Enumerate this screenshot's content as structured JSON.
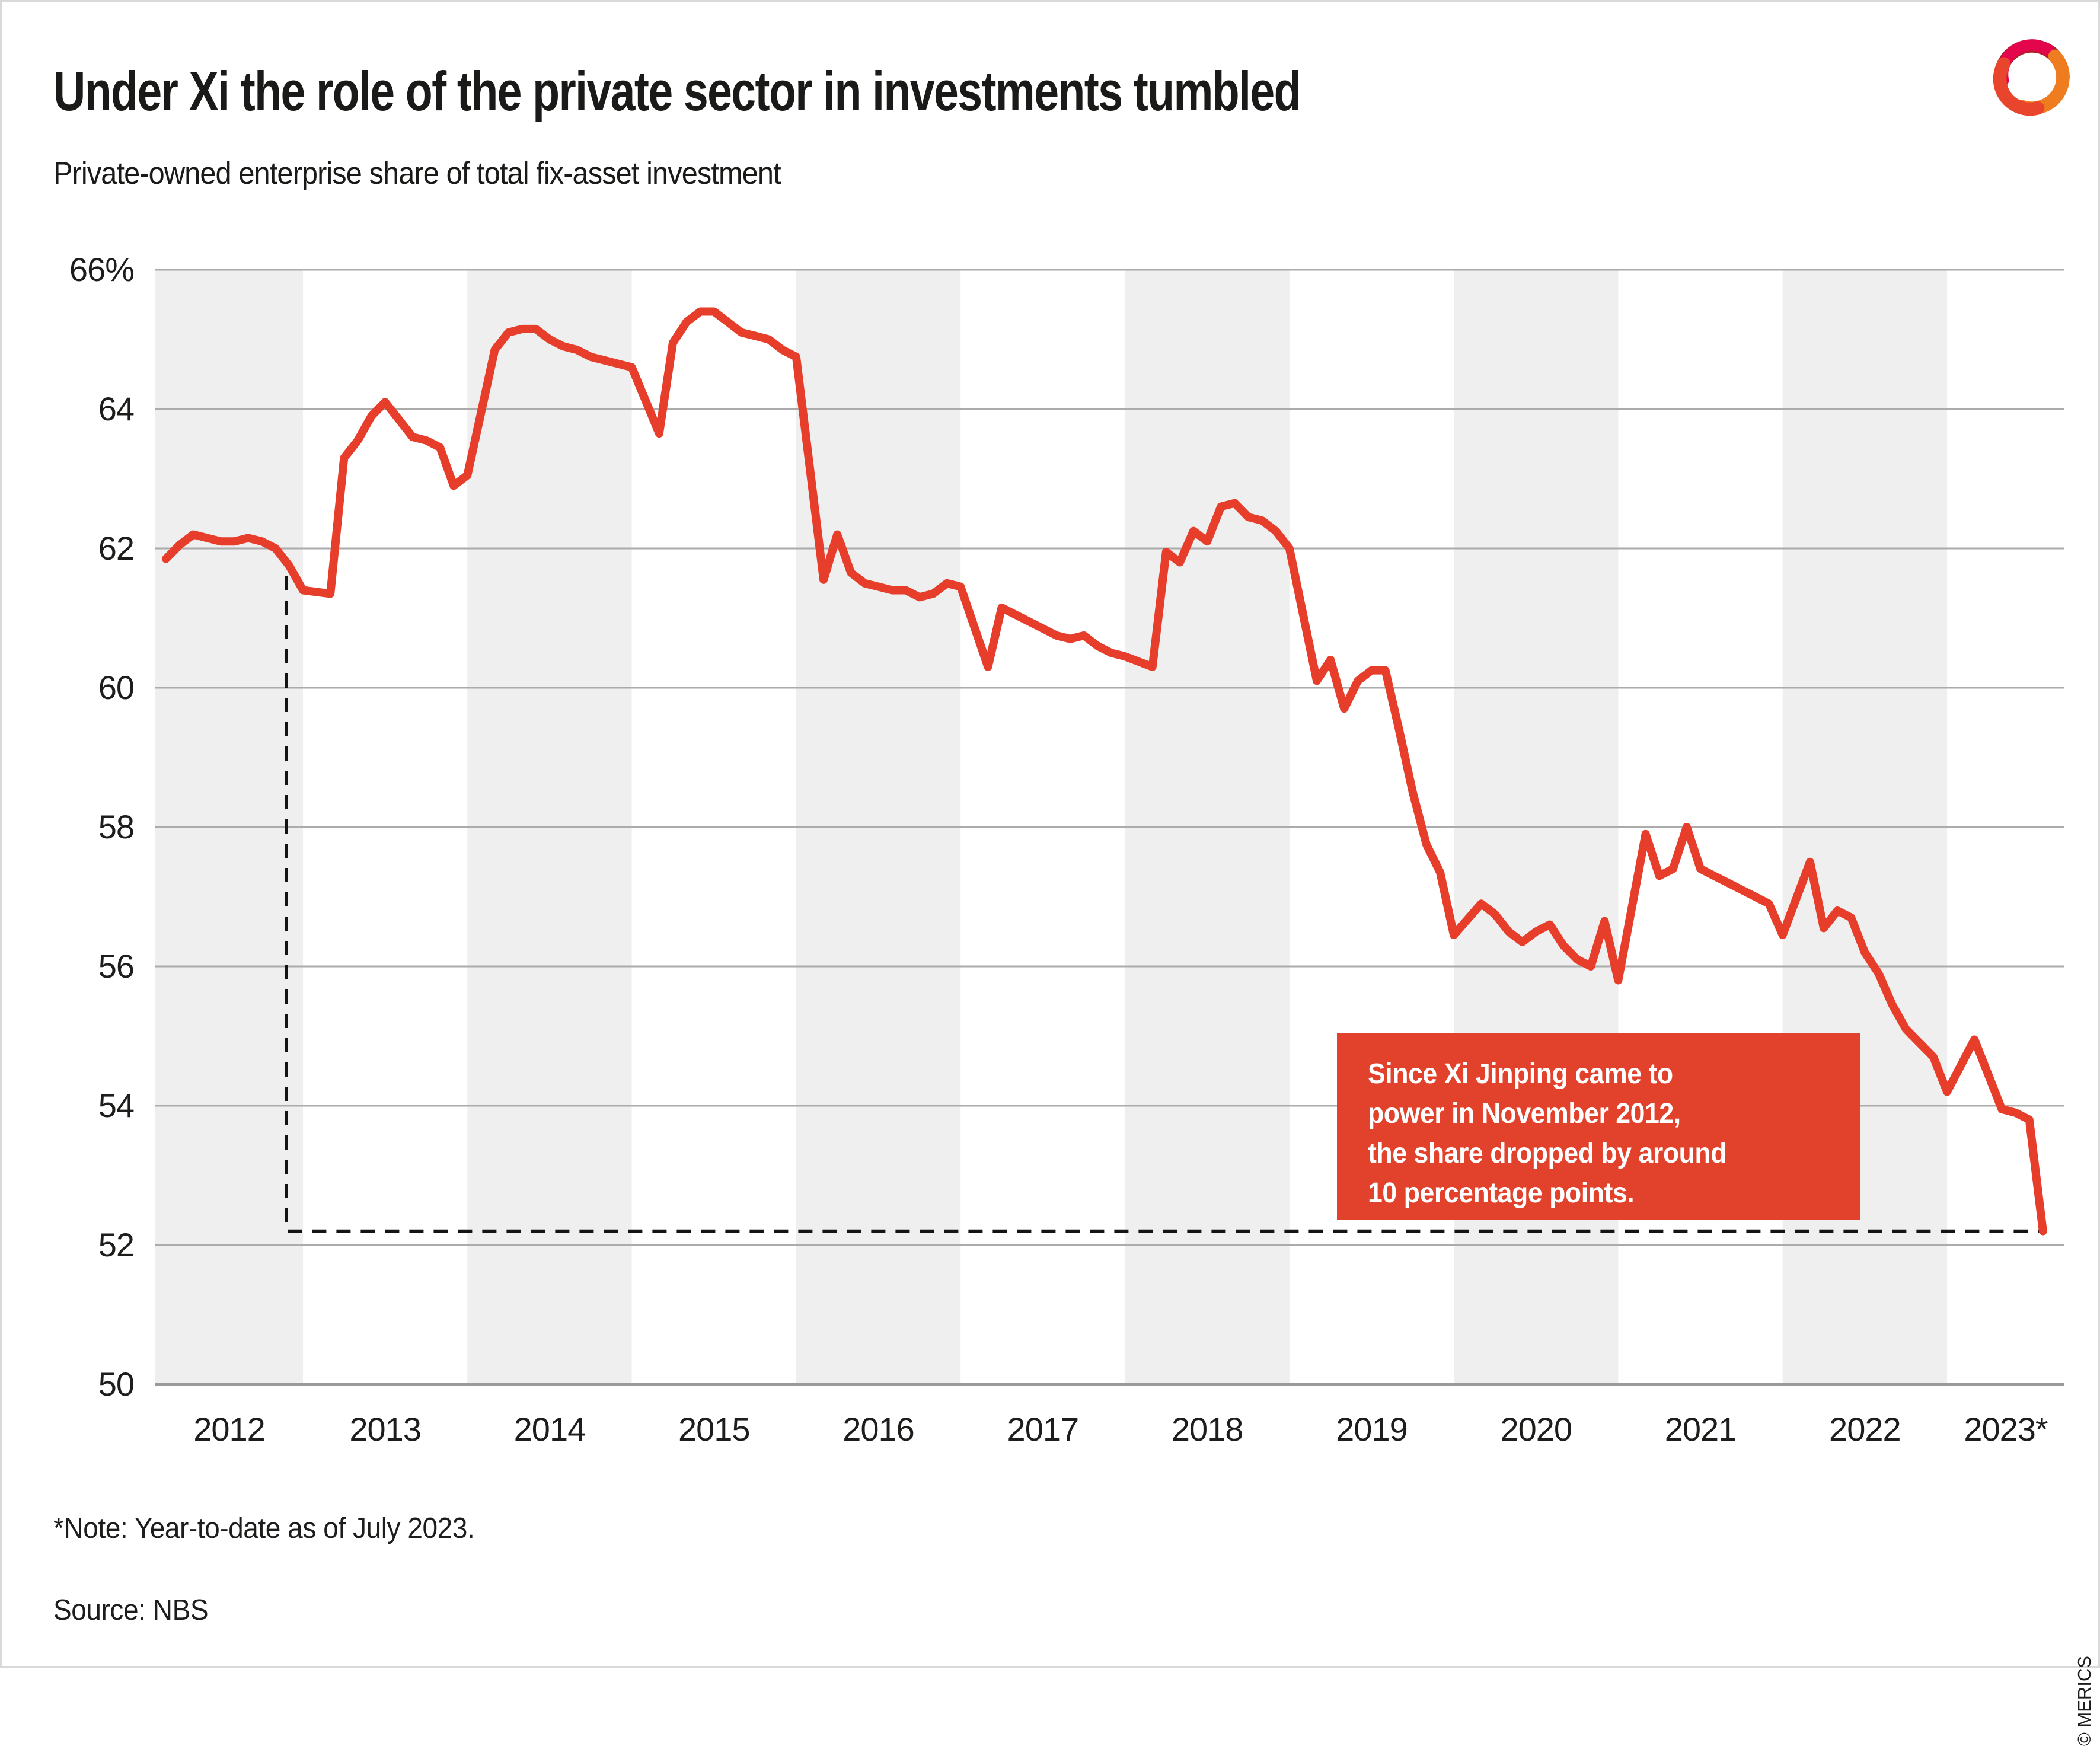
{
  "header": {
    "title": "Under Xi the role of the private sector in investments tumbled",
    "subtitle": "Private-owned enterprise share of total fix-asset investment"
  },
  "annotation": {
    "lines": [
      "Since Xi Jinping came to",
      "power in November 2012,",
      "the share dropped by around",
      "10 percentage points."
    ]
  },
  "footer": {
    "note": "*Note: Year-to-date as of July 2023.",
    "source": "Source: NBS",
    "copyright": "© MERICS"
  },
  "colors": {
    "line": "#e73e2b",
    "annotation_box": "#e2422b",
    "band": "#efefef",
    "grid": "#ababab",
    "axis": "#9a9a9a",
    "dash": "#141414",
    "text": "#1d1d1b",
    "logo_dark_red": "#b01e28",
    "logo_orange": "#ef7d20",
    "logo_crimson": "#e3064c",
    "logo_red_orange": "#e8452c"
  },
  "chart_data": {
    "type": "line",
    "title": "Under Xi the role of the private sector in investments tumbled",
    "subtitle": "Private-owned enterprise share of total fix-asset investment",
    "xlabel": "",
    "ylabel": "",
    "ylim": [
      50,
      66
    ],
    "grid": "horizontal",
    "legend_position": "none",
    "ytick_values": [
      66,
      64,
      62,
      60,
      58,
      56,
      54,
      52,
      50
    ],
    "ytick_labels": [
      "66%",
      "64",
      "62",
      "60",
      "58",
      "56",
      "54",
      "52",
      "50"
    ],
    "xtick_labels": [
      "2012",
      "2013",
      "2014",
      "2015",
      "2016",
      "2017",
      "2018",
      "2019",
      "2020",
      "2021",
      "2022",
      "2023*"
    ],
    "shaded_year_bands": [
      2012,
      2014,
      2016,
      2018,
      2020,
      2022
    ],
    "x_data_note": "monthly year-to-date values, February to December (no January figure); 2023 runs through July",
    "series": [
      {
        "name": "Private-owned enterprise share of total fix-asset investment",
        "unit": "%",
        "values_by_year": {
          "2012": [
            61.85,
            62.05,
            62.2,
            62.15,
            62.1,
            62.1,
            62.15,
            62.1,
            62.0,
            61.75,
            61.4
          ],
          "2013": [
            61.35,
            63.3,
            63.55,
            63.9,
            64.1,
            63.85,
            63.6,
            63.55,
            63.45,
            62.9,
            63.05
          ],
          "2014": [
            64.85,
            65.1,
            65.15,
            65.15,
            65.0,
            64.9,
            64.85,
            64.75,
            64.7,
            64.65,
            64.6
          ],
          "2015": [
            63.65,
            64.95,
            65.25,
            65.4,
            65.4,
            65.25,
            65.1,
            65.05,
            65.0,
            64.85,
            64.75
          ],
          "2016": [
            61.55,
            62.2,
            61.65,
            61.5,
            61.45,
            61.4,
            61.4,
            61.3,
            61.35,
            61.5,
            61.45
          ],
          "2017": [
            60.3,
            61.15,
            61.05,
            60.95,
            60.85,
            60.75,
            60.7,
            60.75,
            60.6,
            60.5,
            60.45
          ],
          "2018": [
            60.3,
            61.95,
            61.8,
            62.25,
            62.1,
            62.6,
            62.65,
            62.45,
            62.4,
            62.25,
            62.0
          ],
          "2019": [
            60.1,
            60.4,
            59.7,
            60.1,
            60.25,
            60.25,
            59.4,
            58.5,
            57.75,
            57.35,
            56.45
          ],
          "2020": [
            56.9,
            56.75,
            56.5,
            56.35,
            56.5,
            56.6,
            56.3,
            56.1,
            56.0,
            56.65,
            55.8
          ],
          "2021": [
            57.9,
            57.3,
            57.4,
            58.0,
            57.4,
            57.3,
            57.2,
            57.1,
            57.0,
            56.9,
            56.45
          ],
          "2022": [
            57.5,
            56.55,
            56.8,
            56.7,
            56.2,
            55.9,
            55.45,
            55.1,
            54.9,
            54.7,
            54.2
          ],
          "2023": [
            54.95,
            54.45,
            53.95,
            53.9,
            53.8,
            52.2
          ]
        }
      }
    ],
    "dashed_reference": {
      "vertical_at": "November 2012",
      "vertical_top_value": 61.6,
      "level": 52.2,
      "extends_to": "July 2023"
    },
    "annotation_text": "Since Xi Jinping came to power in November 2012, the share dropped by around 10 percentage points."
  }
}
